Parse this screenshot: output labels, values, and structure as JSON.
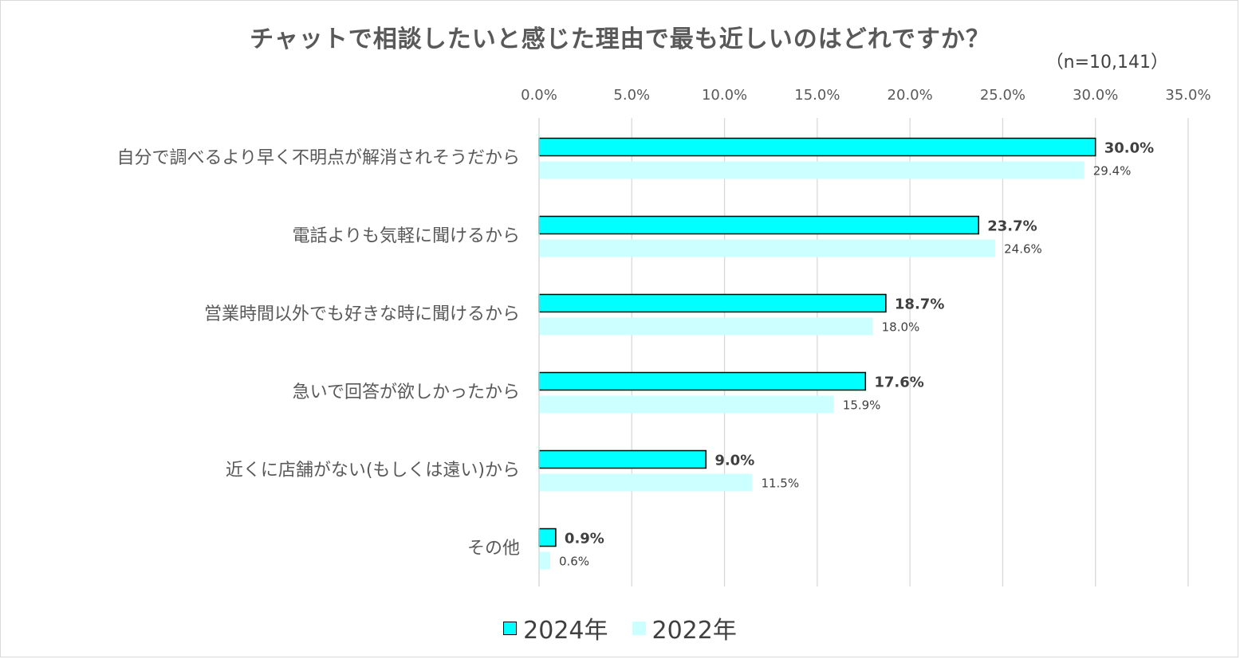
{
  "chart_data": {
    "type": "bar",
    "orientation": "horizontal",
    "title": "チャットで相談したいと感じた理由で最も近しいのはどれですか？",
    "subtitle": "（n=10,141）",
    "categories": [
      "自分で調べるより早く不明点が解消されそうだから",
      "電話よりも気軽に聞けるから",
      "営業時間以外でも好きな時に聞けるから",
      "急いで回答が欲しかったから",
      "近くに店舗がない(もしくは遠い)から",
      "その他"
    ],
    "series": [
      {
        "name": "2024年",
        "values": [
          30.0,
          23.7,
          18.7,
          17.6,
          9.0,
          0.9
        ],
        "labels": [
          "30.0%",
          "23.7%",
          "18.7%",
          "17.6%",
          "9.0%",
          "0.9%"
        ],
        "color": "#00ffff",
        "border": "#000000"
      },
      {
        "name": "2022年",
        "values": [
          29.4,
          24.6,
          18.0,
          15.9,
          11.5,
          0.6
        ],
        "labels": [
          "29.4%",
          "24.6%",
          "18.0%",
          "15.9%",
          "11.5%",
          "0.6%"
        ],
        "color": "#ccffff"
      }
    ],
    "xlim": [
      0,
      35
    ],
    "xticks": [
      "0.0%",
      "5.0%",
      "10.0%",
      "15.0%",
      "20.0%",
      "25.0%",
      "30.0%",
      "35.0%"
    ],
    "grid": true,
    "legend_position": "bottom"
  }
}
